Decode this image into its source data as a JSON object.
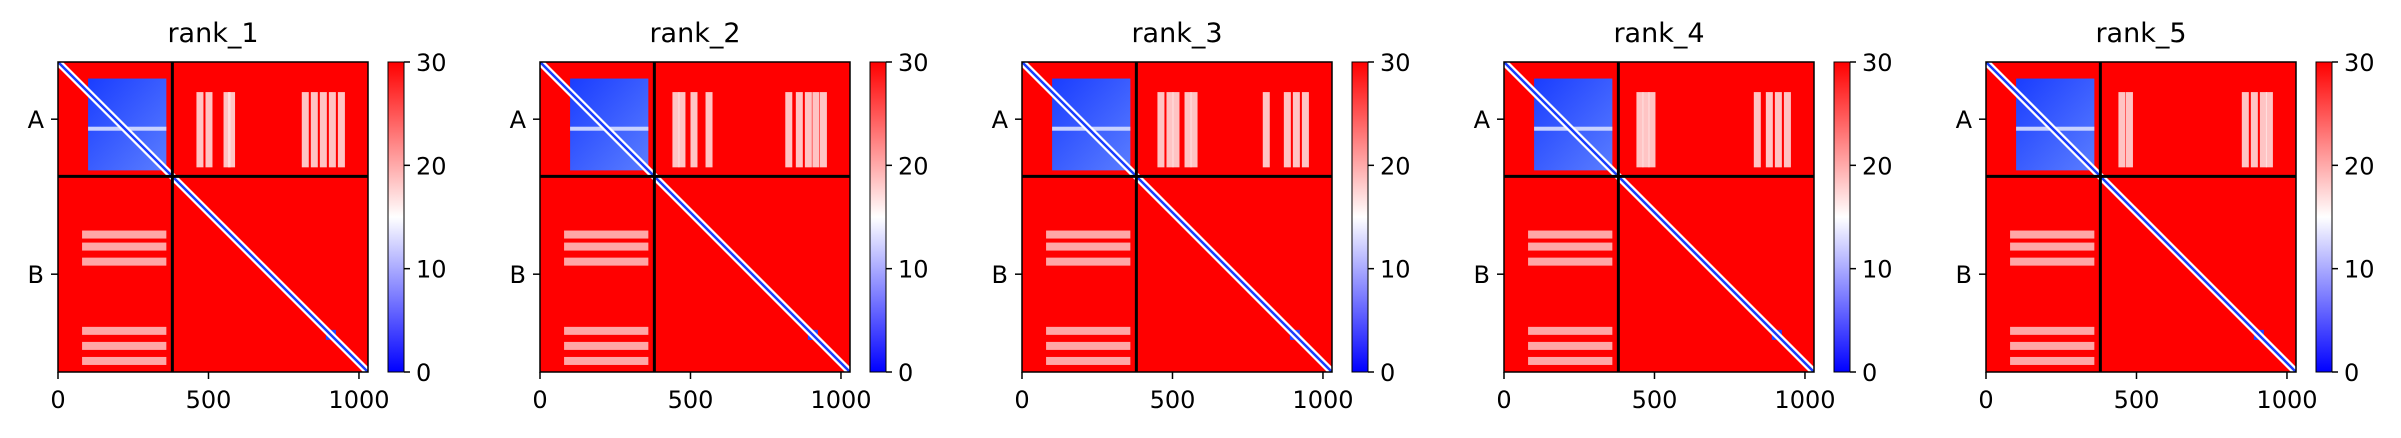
{
  "chart_data": [
    {
      "type": "heatmap",
      "title": "rank_1",
      "chains": [
        "A",
        "B"
      ],
      "chain_boundary": 380,
      "xlim": [
        0,
        1030
      ],
      "ylim": [
        0,
        1030
      ],
      "xticks": [
        0,
        500,
        1000
      ],
      "colorbar": {
        "range": [
          0,
          30
        ],
        "ticks": [
          0,
          10,
          20,
          30
        ],
        "colors": [
          "#0000ff",
          "#ffffff",
          "#ff0000"
        ]
      },
      "domain_blocks": [
        [
          100,
          360
        ],
        [
          820,
          950
        ]
      ],
      "stripes": [
        460,
        490,
        550,
        565,
        810,
        840,
        870,
        900,
        930
      ]
    },
    {
      "type": "heatmap",
      "title": "rank_2",
      "chains": [
        "A",
        "B"
      ],
      "chain_boundary": 380,
      "xlim": [
        0,
        1030
      ],
      "ylim": [
        0,
        1030
      ],
      "xticks": [
        0,
        500,
        1000
      ],
      "colorbar": {
        "range": [
          0,
          30
        ],
        "ticks": [
          0,
          10,
          20,
          30
        ],
        "colors": [
          "#0000ff",
          "#ffffff",
          "#ff0000"
        ]
      },
      "domain_blocks": [
        [
          100,
          360
        ],
        [
          820,
          950
        ]
      ],
      "stripes": [
        440,
        460,
        500,
        550,
        815,
        850,
        880,
        905,
        930
      ]
    },
    {
      "type": "heatmap",
      "title": "rank_3",
      "chains": [
        "A",
        "B"
      ],
      "chain_boundary": 380,
      "xlim": [
        0,
        1030
      ],
      "ylim": [
        0,
        1030
      ],
      "xticks": [
        0,
        500,
        1000
      ],
      "colorbar": {
        "range": [
          0,
          30
        ],
        "ticks": [
          0,
          10,
          20,
          30
        ],
        "colors": [
          "#0000ff",
          "#ffffff",
          "#ff0000"
        ]
      },
      "domain_blocks": [
        [
          100,
          360
        ],
        [
          820,
          950
        ]
      ],
      "stripes": [
        450,
        480,
        500,
        540,
        560,
        800,
        870,
        900,
        930
      ]
    },
    {
      "type": "heatmap",
      "title": "rank_4",
      "chains": [
        "A",
        "B"
      ],
      "chain_boundary": 380,
      "xlim": [
        0,
        1030
      ],
      "ylim": [
        0,
        1030
      ],
      "xticks": [
        0,
        500,
        1000
      ],
      "colorbar": {
        "range": [
          0,
          30
        ],
        "ticks": [
          0,
          10,
          20,
          30
        ],
        "colors": [
          "#0000ff",
          "#ffffff",
          "#ff0000"
        ]
      },
      "domain_blocks": [
        [
          100,
          360
        ],
        [
          820,
          950
        ]
      ],
      "stripes": [
        440,
        460,
        480,
        830,
        870,
        900,
        930
      ]
    },
    {
      "type": "heatmap",
      "title": "rank_5",
      "chains": [
        "A",
        "B"
      ],
      "chain_boundary": 380,
      "xlim": [
        0,
        1030
      ],
      "ylim": [
        0,
        1030
      ],
      "xticks": [
        0,
        500,
        1000
      ],
      "colorbar": {
        "range": [
          0,
          30
        ],
        "ticks": [
          0,
          10,
          20,
          30
        ],
        "colors": [
          "#0000ff",
          "#ffffff",
          "#ff0000"
        ]
      },
      "domain_blocks": [
        [
          100,
          360
        ],
        [
          820,
          950
        ]
      ],
      "stripes": [
        440,
        465,
        850,
        880,
        910,
        930
      ]
    }
  ]
}
